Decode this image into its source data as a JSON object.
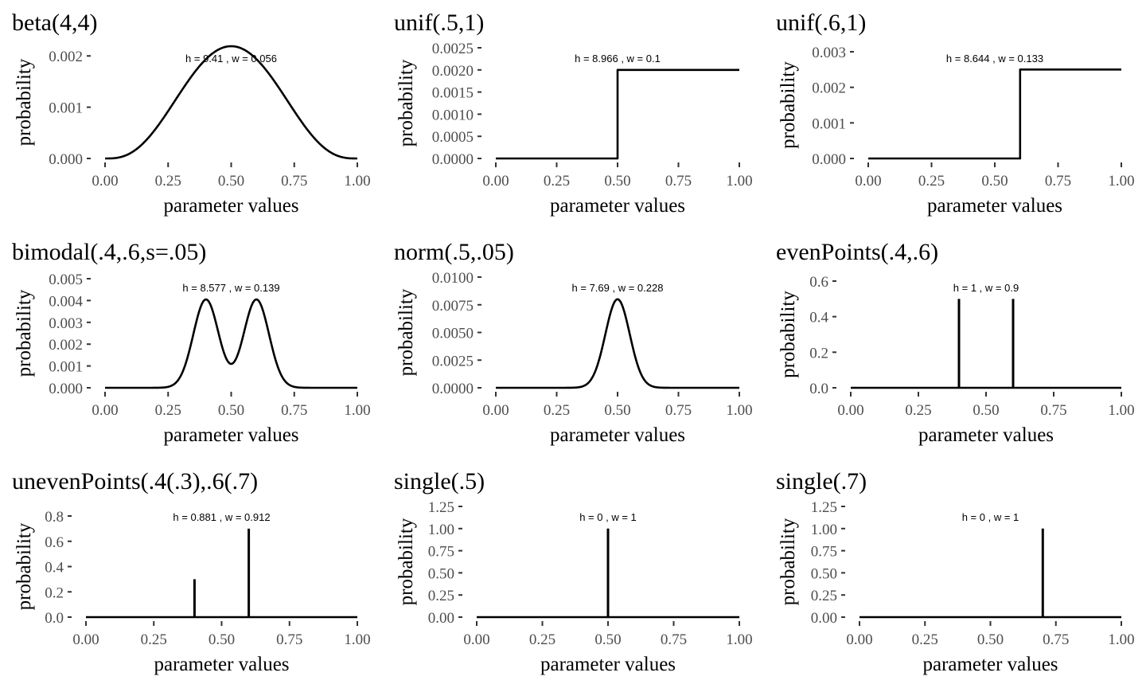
{
  "chart_data": [
    {
      "type": "line",
      "title": "beta(4,4)",
      "xlabel": "parameter values",
      "ylabel": "probability",
      "annotation": "h = 9.41 , w =  0.056",
      "xlim": [
        0,
        1
      ],
      "ylim": [
        0,
        0.00219
      ],
      "x_ticks": [
        0,
        0.25,
        0.5,
        0.75,
        1
      ],
      "x_tick_labels": [
        "0.00",
        "0.25",
        "0.50",
        "0.75",
        "1.00"
      ],
      "y_ticks": [
        0,
        0.001,
        0.002
      ],
      "y_tick_labels": [
        "0.000",
        "0.001",
        "0.002"
      ],
      "series": [
        {
          "kind": "beta",
          "a": 4,
          "b": 4,
          "peak": 0.00219
        }
      ],
      "grid": false
    },
    {
      "type": "line",
      "title": "unif(.5,1)",
      "xlabel": "parameter values",
      "ylabel": "probability",
      "annotation": "h = 8.966 , w =  0.1",
      "xlim": [
        0,
        1
      ],
      "ylim": [
        0,
        0.0025
      ],
      "x_ticks": [
        0,
        0.25,
        0.5,
        0.75,
        1
      ],
      "x_tick_labels": [
        "0.00",
        "0.25",
        "0.50",
        "0.75",
        "1.00"
      ],
      "y_ticks": [
        0,
        0.0005,
        0.001,
        0.0015,
        0.002,
        0.0025
      ],
      "y_tick_labels": [
        "0.0000",
        "0.0005",
        "0.0010",
        "0.0015",
        "0.0020",
        "0.0025"
      ],
      "series": [
        {
          "kind": "step",
          "x": [
            0,
            0.5,
            0.5,
            1
          ],
          "y": [
            0,
            0,
            0.002,
            0.002
          ]
        }
      ],
      "grid": false
    },
    {
      "type": "line",
      "title": "unif(.6,1)",
      "xlabel": "parameter values",
      "ylabel": "probability",
      "annotation": "h = 8.644 , w =  0.133",
      "xlim": [
        0,
        1
      ],
      "ylim": [
        0,
        0.003
      ],
      "x_ticks": [
        0,
        0.25,
        0.5,
        0.75,
        1
      ],
      "x_tick_labels": [
        "0.00",
        "0.25",
        "0.50",
        "0.75",
        "1.00"
      ],
      "y_ticks": [
        0,
        0.001,
        0.002,
        0.003
      ],
      "y_tick_labels": [
        "0.000",
        "0.001",
        "0.002",
        "0.003"
      ],
      "series": [
        {
          "kind": "step",
          "x": [
            0,
            0.6,
            0.6,
            1
          ],
          "y": [
            0,
            0,
            0.0025,
            0.0025
          ]
        }
      ],
      "grid": false
    },
    {
      "type": "line",
      "title": "bimodal(.4,.6,s=.05)",
      "xlabel": "parameter values",
      "ylabel": "probability",
      "annotation": "h = 8.577 , w =  0.139",
      "xlim": [
        0,
        1
      ],
      "ylim": [
        0,
        0.005
      ],
      "x_ticks": [
        0,
        0.25,
        0.5,
        0.75,
        1
      ],
      "x_tick_labels": [
        "0.00",
        "0.25",
        "0.50",
        "0.75",
        "1.00"
      ],
      "y_ticks": [
        0,
        0.001,
        0.002,
        0.003,
        0.004,
        0.005
      ],
      "y_tick_labels": [
        "0.000",
        "0.001",
        "0.002",
        "0.003",
        "0.004",
        "0.005"
      ],
      "series": [
        {
          "kind": "gauss-mix",
          "means": [
            0.4,
            0.6
          ],
          "sd": 0.05,
          "peak": 0.00405
        }
      ],
      "grid": false
    },
    {
      "type": "line",
      "title": "norm(.5,.05)",
      "xlabel": "parameter values",
      "ylabel": "probability",
      "annotation": "h = 7.69 , w =  0.228",
      "xlim": [
        0,
        1
      ],
      "ylim": [
        0,
        0.01
      ],
      "x_ticks": [
        0,
        0.25,
        0.5,
        0.75,
        1
      ],
      "x_tick_labels": [
        "0.00",
        "0.25",
        "0.50",
        "0.75",
        "1.00"
      ],
      "y_ticks": [
        0,
        0.0025,
        0.005,
        0.0075,
        0.01
      ],
      "y_tick_labels": [
        "0.0000",
        "0.0025",
        "0.0050",
        "0.0075",
        "0.0100"
      ],
      "series": [
        {
          "kind": "gauss-mix",
          "means": [
            0.5
          ],
          "sd": 0.05,
          "peak": 0.008
        }
      ],
      "grid": false
    },
    {
      "type": "line",
      "title": "evenPoints(.4,.6)",
      "xlabel": "parameter values",
      "ylabel": "probability",
      "annotation": "h = 1 , w =  0.9",
      "xlim": [
        0,
        1
      ],
      "ylim": [
        0,
        0.6
      ],
      "x_ticks": [
        0,
        0.25,
        0.5,
        0.75,
        1
      ],
      "x_tick_labels": [
        "0.00",
        "0.25",
        "0.50",
        "0.75",
        "1.00"
      ],
      "y_ticks": [
        0,
        0.2,
        0.4,
        0.6
      ],
      "y_tick_labels": [
        "0.0",
        "0.2",
        "0.4",
        "0.6"
      ],
      "series": [
        {
          "kind": "spikes",
          "x": [
            0.4,
            0.6
          ],
          "y": [
            0.5,
            0.5
          ]
        }
      ],
      "grid": false
    },
    {
      "type": "line",
      "title": "unevenPoints(.4(.3),.6(.7)",
      "xlabel": "parameter values",
      "ylabel": "probability",
      "annotation": "h = 0.881 , w =  0.912",
      "xlim": [
        0,
        1
      ],
      "ylim": [
        0,
        0.8
      ],
      "x_ticks": [
        0,
        0.25,
        0.5,
        0.75,
        1
      ],
      "x_tick_labels": [
        "0.00",
        "0.25",
        "0.50",
        "0.75",
        "1.00"
      ],
      "y_ticks": [
        0,
        0.2,
        0.4,
        0.6,
        0.8
      ],
      "y_tick_labels": [
        "0.0",
        "0.2",
        "0.4",
        "0.6",
        "0.8"
      ],
      "series": [
        {
          "kind": "spikes",
          "x": [
            0.4,
            0.6
          ],
          "y": [
            0.3,
            0.7
          ]
        }
      ],
      "grid": false
    },
    {
      "type": "line",
      "title": "single(.5)",
      "xlabel": "parameter values",
      "ylabel": "probability",
      "annotation": "h = 0 , w =  1",
      "xlim": [
        0,
        1
      ],
      "ylim": [
        0,
        1.25
      ],
      "x_ticks": [
        0,
        0.25,
        0.5,
        0.75,
        1
      ],
      "x_tick_labels": [
        "0.00",
        "0.25",
        "0.50",
        "0.75",
        "1.00"
      ],
      "y_ticks": [
        0,
        0.25,
        0.5,
        0.75,
        1,
        1.25
      ],
      "y_tick_labels": [
        "0.00",
        "0.25",
        "0.50",
        "0.75",
        "1.00",
        "1.25"
      ],
      "series": [
        {
          "kind": "spikes",
          "x": [
            0.5
          ],
          "y": [
            1
          ]
        }
      ],
      "grid": false
    },
    {
      "type": "line",
      "title": "single(.7)",
      "xlabel": "parameter values",
      "ylabel": "probability",
      "annotation": "h = 0 , w =  1",
      "xlim": [
        0,
        1
      ],
      "ylim": [
        0,
        1.25
      ],
      "x_ticks": [
        0,
        0.25,
        0.5,
        0.75,
        1
      ],
      "x_tick_labels": [
        "0.00",
        "0.25",
        "0.50",
        "0.75",
        "1.00"
      ],
      "y_ticks": [
        0,
        0.25,
        0.5,
        0.75,
        1,
        1.25
      ],
      "y_tick_labels": [
        "0.00",
        "0.25",
        "0.50",
        "0.75",
        "1.00",
        "1.25"
      ],
      "series": [
        {
          "kind": "spikes",
          "x": [
            0.7
          ],
          "y": [
            1
          ]
        }
      ],
      "grid": false
    }
  ],
  "colors": {
    "line": "#000000",
    "tick_label": "#4d4d4d",
    "background": "#ffffff"
  }
}
